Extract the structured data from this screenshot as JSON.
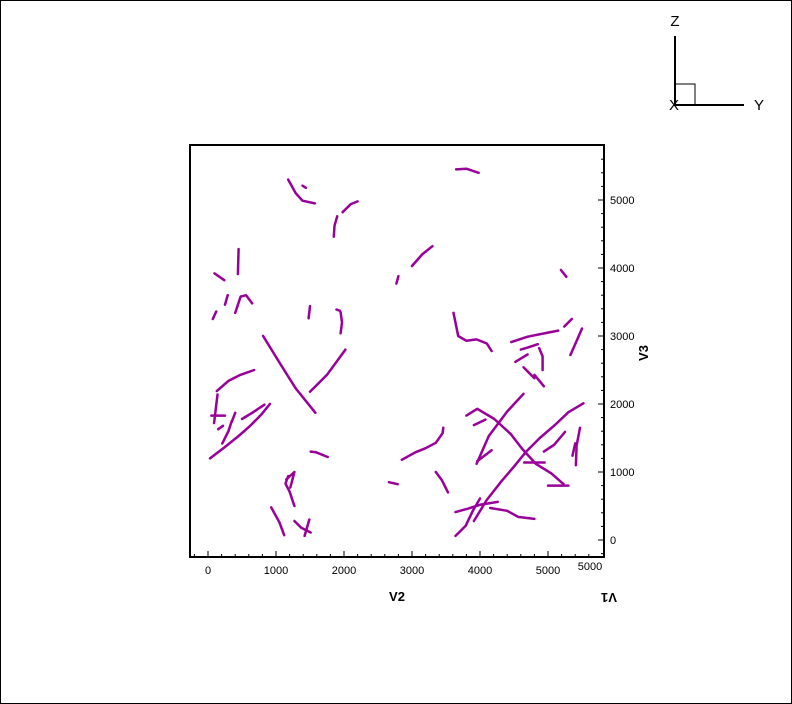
{
  "chart_data": {
    "type": "line",
    "xlabel": "V2",
    "ylabel": "V3",
    "depth_label": "V1",
    "xlim": [
      -250,
      5800
    ],
    "ylim": [
      -250,
      5800
    ],
    "x_ticks": [
      0,
      1000,
      2000,
      3000,
      4000,
      5000
    ],
    "y_ticks": [
      0,
      1000,
      2000,
      3000,
      4000,
      5000
    ],
    "depth_tick": "5000",
    "color": "#990099",
    "triad": {
      "vertical": "Z",
      "horizontal": "Y",
      "origin": "X"
    },
    "series": [
      {
        "x": [
          1180,
          1290,
          1390,
          1570
        ],
        "y": [
          5300,
          5100,
          4990,
          4950
        ]
      },
      {
        "x": [
          1390,
          1440
        ],
        "y": [
          5210,
          5180
        ]
      },
      {
        "x": [
          1850,
          1860,
          1900
        ],
        "y": [
          4460,
          4620,
          4760
        ]
      },
      {
        "x": [
          1980,
          2100,
          2200
        ],
        "y": [
          4820,
          4940,
          4980
        ]
      },
      {
        "x": [
          3650,
          3800,
          3980
        ],
        "y": [
          5450,
          5460,
          5400
        ]
      },
      {
        "x": [
          2770,
          2800
        ],
        "y": [
          3770,
          3880
        ]
      },
      {
        "x": [
          3000,
          3150,
          3300
        ],
        "y": [
          4030,
          4200,
          4320
        ]
      },
      {
        "x": [
          5190,
          5270
        ],
        "y": [
          3970,
          3870
        ]
      },
      {
        "x": [
          95,
          240
        ],
        "y": [
          3920,
          3820
        ]
      },
      {
        "x": [
          440,
          450
        ],
        "y": [
          3910,
          4280
        ]
      },
      {
        "x": [
          250,
          290
        ],
        "y": [
          3460,
          3600
        ]
      },
      {
        "x": [
          400,
          480,
          560,
          650
        ],
        "y": [
          3340,
          3580,
          3600,
          3480
        ]
      },
      {
        "x": [
          70,
          120
        ],
        "y": [
          3250,
          3360
        ]
      },
      {
        "x": [
          1480,
          1500
        ],
        "y": [
          3260,
          3440
        ]
      },
      {
        "x": [
          1950,
          1970,
          1950
        ],
        "y": [
          3040,
          3200,
          3350
        ]
      },
      {
        "x": [
          1890,
          1940
        ],
        "y": [
          3390,
          3370
        ]
      },
      {
        "x": [
          3610,
          3680,
          3800,
          3950,
          4100,
          4170
        ],
        "y": [
          3340,
          3000,
          2930,
          2950,
          2890,
          2780
        ]
      },
      {
        "x": [
          4460,
          4700,
          5000,
          5150
        ],
        "y": [
          2910,
          2990,
          3050,
          3080
        ]
      },
      {
        "x": [
          5240,
          5350
        ],
        "y": [
          3140,
          3250
        ]
      },
      {
        "x": [
          5330,
          5440,
          5500
        ],
        "y": [
          2720,
          2970,
          3110
        ]
      },
      {
        "x": [
          4600,
          4700,
          4850
        ],
        "y": [
          2800,
          2830,
          2880
        ]
      },
      {
        "x": [
          4520,
          4700
        ],
        "y": [
          2620,
          2730
        ]
      },
      {
        "x": [
          4870,
          4920,
          4920
        ],
        "y": [
          2820,
          2700,
          2500
        ]
      },
      {
        "x": [
          4640,
          4800
        ],
        "y": [
          2540,
          2380
        ]
      },
      {
        "x": [
          4800,
          4940
        ],
        "y": [
          2430,
          2260
        ]
      },
      {
        "x": [
          810,
          1050,
          1290,
          1580
        ],
        "y": [
          3000,
          2610,
          2230,
          1870
        ]
      },
      {
        "x": [
          1500,
          1750,
          2020
        ],
        "y": [
          2180,
          2430,
          2800
        ]
      },
      {
        "x": [
          130,
          300,
          480,
          680
        ],
        "y": [
          2190,
          2340,
          2430,
          2500
        ]
      },
      {
        "x": [
          90,
          140
        ],
        "y": [
          1720,
          2140
        ]
      },
      {
        "x": [
          50,
          250
        ],
        "y": [
          1830,
          1830
        ]
      },
      {
        "x": [
          150,
          220
        ],
        "y": [
          1630,
          1680
        ]
      },
      {
        "x": [
          210,
          300,
          350
        ],
        "y": [
          1420,
          1600,
          1750
        ]
      },
      {
        "x": [
          350,
          400
        ],
        "y": [
          1740,
          1870
        ]
      },
      {
        "x": [
          500,
          650,
          830
        ],
        "y": [
          1780,
          1870,
          1990
        ]
      },
      {
        "x": [
          30,
          240,
          450,
          620,
          780,
          910
        ],
        "y": [
          1200,
          1360,
          1530,
          1680,
          1840,
          2000
        ]
      },
      {
        "x": [
          1510,
          1590,
          1760
        ],
        "y": [
          1300,
          1290,
          1220
        ]
      },
      {
        "x": [
          3800,
          3960,
          4210,
          4450,
          4620,
          4820,
          5050,
          5230
        ],
        "y": [
          1830,
          1930,
          1780,
          1560,
          1340,
          1120,
          980,
          820
        ]
      },
      {
        "x": [
          3910,
          4080
        ],
        "y": [
          1690,
          1770
        ]
      },
      {
        "x": [
          2850,
          3050,
          3200,
          3350,
          3450,
          3460
        ],
        "y": [
          1180,
          1290,
          1350,
          1430,
          1570,
          1650
        ]
      },
      {
        "x": [
          3950,
          4130,
          4400,
          4640
        ],
        "y": [
          1120,
          1530,
          1890,
          2150
        ]
      },
      {
        "x": [
          3960,
          4170
        ],
        "y": [
          1160,
          1320
        ]
      },
      {
        "x": [
          3910,
          4100,
          4320,
          4500,
          4680,
          4880,
          5100,
          5300,
          5520
        ],
        "y": [
          280,
          590,
          870,
          1080,
          1300,
          1500,
          1690,
          1880,
          2010
        ]
      },
      {
        "x": [
          4650,
          4950
        ],
        "y": [
          1140,
          1140
        ]
      },
      {
        "x": [
          5360,
          5400
        ],
        "y": [
          1240,
          1420
        ]
      },
      {
        "x": [
          5410,
          5420,
          5470
        ],
        "y": [
          1100,
          1390,
          1650
        ]
      },
      {
        "x": [
          4940,
          5090,
          5200,
          5250
        ],
        "y": [
          1300,
          1400,
          1530,
          1590
        ]
      },
      {
        "x": [
          5000,
          5300
        ],
        "y": [
          800,
          800
        ]
      },
      {
        "x": [
          1180,
          1140,
          1200,
          1270
        ],
        "y": [
          940,
          830,
          710,
          500
        ]
      },
      {
        "x": [
          1150,
          1260
        ],
        "y": [
          890,
          990
        ]
      },
      {
        "x": [
          1210,
          1270
        ],
        "y": [
          770,
          1000
        ]
      },
      {
        "x": [
          2660,
          2790
        ],
        "y": [
          850,
          820
        ]
      },
      {
        "x": [
          3350,
          3440,
          3530
        ],
        "y": [
          1000,
          880,
          700
        ]
      },
      {
        "x": [
          930,
          1050,
          1120
        ],
        "y": [
          480,
          260,
          70
        ]
      },
      {
        "x": [
          1270,
          1370,
          1510
        ],
        "y": [
          280,
          180,
          110
        ]
      },
      {
        "x": [
          1420,
          1490
        ],
        "y": [
          60,
          300
        ]
      },
      {
        "x": [
          3640,
          3820,
          4010,
          4260
        ],
        "y": [
          410,
          460,
          520,
          560
        ]
      },
      {
        "x": [
          3640,
          3680,
          3790,
          3900,
          4000
        ],
        "y": [
          60,
          100,
          210,
          440,
          610
        ]
      },
      {
        "x": [
          4150,
          4400,
          4560,
          4800
        ],
        "y": [
          470,
          430,
          340,
          310
        ]
      }
    ]
  }
}
